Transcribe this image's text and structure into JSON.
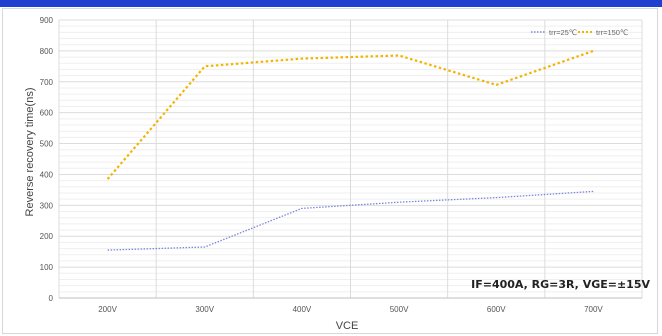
{
  "colors": {
    "series_25": "#7a86d9",
    "series_150": "#f2b400",
    "grid": "#e6e6e6"
  },
  "chart_data": {
    "type": "line",
    "categories": [
      "200V",
      "300V",
      "400V",
      "500V",
      "600V",
      "700V"
    ],
    "series": [
      {
        "name": "trr=25℃",
        "values": [
          155,
          165,
          290,
          310,
          325,
          345
        ]
      },
      {
        "name": "trr=150℃",
        "values": [
          385,
          750,
          775,
          785,
          690,
          800
        ]
      }
    ],
    "xlabel": "VCE",
    "ylabel": "Reverse recovery time(ns)",
    "ylim": [
      0,
      900
    ],
    "yticks": [
      0,
      100,
      200,
      300,
      400,
      500,
      600,
      700,
      800,
      900
    ],
    "grid": true,
    "legend": "top-right",
    "annotation": "IF=400A, RG=3R, VGE=±15V"
  }
}
